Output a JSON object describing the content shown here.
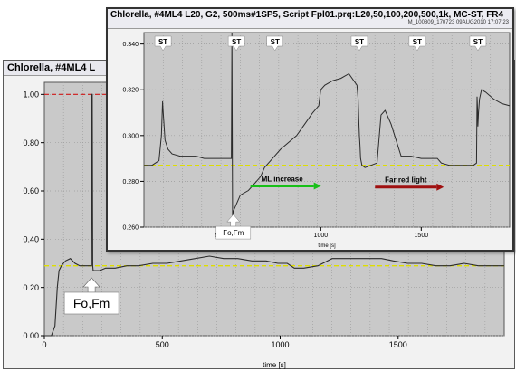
{
  "main_window": {
    "title": "Chlorella, #4ML4 L"
  },
  "inset_window": {
    "title": "Chlorella, #4ML4 L20, G2, 500ms#1SP5, Script Fpl01.prq:L20,50,100,200,500,1k, MC-ST, FR4",
    "subtitle": "M_100809_170723 09AUG2010 17:07:23"
  },
  "colors": {
    "plot_bg": "#c9c9c9",
    "grid": "#9a9a9a",
    "trace": "#2b2b2b",
    "fm_reference": "#d01818",
    "fo_reference": "#dede00",
    "ml_arrow": "#18c018",
    "far_red_arrow": "#a01010"
  },
  "chart_data": [
    {
      "type": "line",
      "name": "main",
      "xlabel": "time [s]",
      "ylabel": "",
      "xlim": [
        0,
        1950
      ],
      "ylim": [
        0,
        1.05
      ],
      "x_ticks": [
        "0",
        "500",
        "1000",
        "1500"
      ],
      "y_ticks": [
        "0.00",
        "0.20",
        "0.40",
        "0.60",
        "0.80",
        "1.00"
      ],
      "fm_level": 1.0,
      "fo_level": 0.29,
      "annotations": [
        {
          "text": "Fo,Fm",
          "x": 200
        }
      ],
      "series": [
        {
          "x": [
            0,
            30,
            45,
            55,
            62,
            72,
            90,
            110,
            130,
            150,
            170,
            190,
            200,
            201,
            203,
            205,
            207,
            215,
            235,
            260,
            300,
            350,
            400,
            460,
            520,
            580,
            640,
            700,
            760,
            820,
            880,
            940,
            990,
            1030,
            1060,
            1100,
            1160,
            1220,
            1280,
            1330,
            1380,
            1430,
            1480,
            1540,
            1600,
            1660,
            1720,
            1780,
            1840,
            1900,
            1950
          ],
          "y": [
            0.0,
            0.0,
            0.04,
            0.2,
            0.27,
            0.29,
            0.31,
            0.32,
            0.3,
            0.29,
            0.29,
            0.29,
            0.29,
            1.0,
            1.0,
            0.29,
            0.27,
            0.27,
            0.27,
            0.28,
            0.28,
            0.29,
            0.29,
            0.3,
            0.3,
            0.31,
            0.32,
            0.33,
            0.32,
            0.32,
            0.31,
            0.31,
            0.3,
            0.3,
            0.28,
            0.28,
            0.29,
            0.32,
            0.32,
            0.32,
            0.32,
            0.32,
            0.31,
            0.3,
            0.3,
            0.29,
            0.29,
            0.3,
            0.29,
            0.29,
            0.29
          ]
        }
      ]
    },
    {
      "type": "line",
      "name": "inset",
      "xlabel": "time [s]",
      "ylabel": "",
      "xlim": [
        120,
        1940
      ],
      "ylim": [
        0.26,
        0.345
      ],
      "x_ticks": [
        "500",
        "1000",
        "1500"
      ],
      "y_ticks": [
        "0.260",
        "0.280",
        "0.300",
        "0.320",
        "0.340"
      ],
      "fo_level": 0.287,
      "st_markers": [
        {
          "text": "ST",
          "x": 215
        },
        {
          "text": "ST",
          "x": 580
        },
        {
          "text": "ST",
          "x": 772
        },
        {
          "text": "ST",
          "x": 1192
        },
        {
          "text": "ST",
          "x": 1480
        },
        {
          "text": "ST",
          "x": 1782
        }
      ],
      "annotations": [
        {
          "text": "Fo,Fm",
          "x": 565
        },
        {
          "text": "ML increase",
          "x": 650
        },
        {
          "text": "Far red light",
          "x": 1270
        }
      ],
      "series": [
        {
          "x": [
            120,
            160,
            195,
            207,
            213,
            216,
            225,
            240,
            260,
            300,
            340,
            380,
            420,
            460,
            500,
            540,
            555,
            558,
            561,
            565,
            580,
            600,
            640,
            680,
            700,
            720,
            760,
            800,
            840,
            880,
            920,
            960,
            990,
            1000,
            1020,
            1060,
            1100,
            1140,
            1180,
            1186,
            1188,
            1190,
            1192,
            1195,
            1198,
            1205,
            1220,
            1250,
            1280,
            1300,
            1320,
            1350,
            1400,
            1450,
            1500,
            1550,
            1580,
            1600,
            1640,
            1680,
            1720,
            1760,
            1775,
            1778,
            1780,
            1782,
            1785,
            1790,
            1800,
            1820,
            1860,
            1900,
            1940
          ],
          "y": [
            0.287,
            0.287,
            0.289,
            0.3,
            0.315,
            0.31,
            0.298,
            0.294,
            0.292,
            0.291,
            0.291,
            0.291,
            0.29,
            0.29,
            0.29,
            0.29,
            0.29,
            0.345,
            0.265,
            0.267,
            0.27,
            0.274,
            0.276,
            0.28,
            0.282,
            0.286,
            0.29,
            0.294,
            0.297,
            0.3,
            0.305,
            0.31,
            0.313,
            0.32,
            0.322,
            0.324,
            0.325,
            0.327,
            0.322,
            0.316,
            0.31,
            0.305,
            0.3,
            0.296,
            0.29,
            0.287,
            0.286,
            0.287,
            0.288,
            0.309,
            0.311,
            0.305,
            0.291,
            0.291,
            0.29,
            0.29,
            0.29,
            0.288,
            0.287,
            0.287,
            0.287,
            0.287,
            0.288,
            0.317,
            0.312,
            0.304,
            0.31,
            0.316,
            0.32,
            0.319,
            0.316,
            0.314,
            0.313
          ]
        }
      ]
    }
  ]
}
